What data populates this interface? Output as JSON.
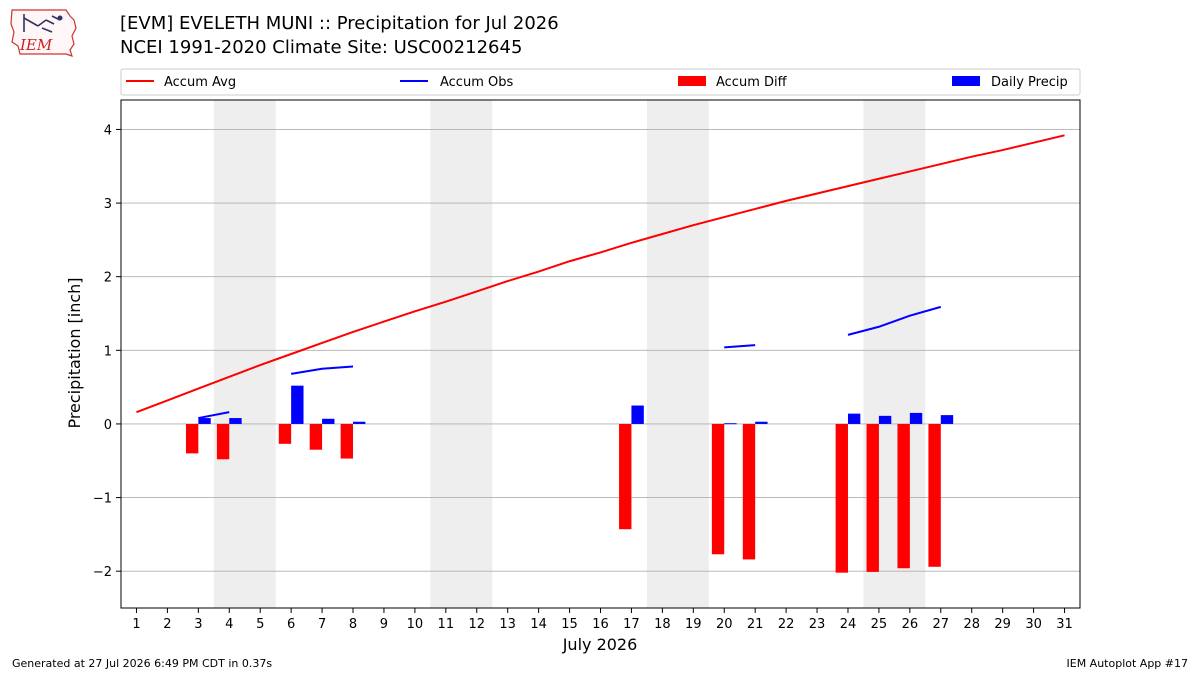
{
  "header": {
    "title": "[EVM] EVELETH MUNI :: Precipitation for Jul 2026",
    "subtitle": "NCEI 1991-2020 Climate Site: USC00212645",
    "logo_text": "IEM"
  },
  "footer": {
    "left": "Generated at 27 Jul 2026 6:49 PM CDT in 0.37s",
    "right": "IEM Autoplot App #17"
  },
  "colors": {
    "accum_avg": "#ff0000",
    "accum_obs": "#0000ff",
    "accum_diff": "#ff0000",
    "daily_precip": "#0000ff",
    "weekend_shade": "#eeeeee",
    "grid": "#b0b0b0"
  },
  "chart_data": {
    "type": "bar",
    "xlabel": "July 2026",
    "ylabel": "Precipitation [inch]",
    "xlim": [
      0.5,
      31.5
    ],
    "ylim": [
      -2.5,
      4.4
    ],
    "yticks": [
      -2,
      -1,
      0,
      1,
      2,
      3,
      4
    ],
    "ytick_labels": [
      "−2",
      "−1",
      "0",
      "1",
      "2",
      "3",
      "4"
    ],
    "x": [
      1,
      2,
      3,
      4,
      5,
      6,
      7,
      8,
      9,
      10,
      11,
      12,
      13,
      14,
      15,
      16,
      17,
      18,
      19,
      20,
      21,
      22,
      23,
      24,
      25,
      26,
      27,
      28,
      29,
      30,
      31
    ],
    "xtick_labels": [
      "1",
      "2",
      "3",
      "4",
      "5",
      "6",
      "7",
      "8",
      "9",
      "10",
      "11",
      "12",
      "13",
      "14",
      "15",
      "16",
      "17",
      "18",
      "19",
      "20",
      "21",
      "22",
      "23",
      "24",
      "25",
      "26",
      "27",
      "28",
      "29",
      "30",
      "31"
    ],
    "weekend_days": [
      4,
      5,
      11,
      12,
      18,
      19,
      25,
      26
    ],
    "grid": "y",
    "legend_position": "top",
    "legend": [
      {
        "label": "Accum Avg",
        "kind": "line",
        "color": "#ff0000"
      },
      {
        "label": "Accum Obs",
        "kind": "line",
        "color": "#0000ff"
      },
      {
        "label": "Accum Diff",
        "kind": "bar",
        "color": "#ff0000"
      },
      {
        "label": "Daily Precip",
        "kind": "bar",
        "color": "#0000ff"
      }
    ],
    "series": [
      {
        "name": "Accum Avg",
        "type": "line",
        "x": [
          1,
          2,
          3,
          4,
          5,
          6,
          7,
          8,
          9,
          10,
          11,
          12,
          13,
          14,
          15,
          16,
          17,
          18,
          19,
          20,
          21,
          22,
          23,
          24,
          25,
          26,
          27,
          28,
          29,
          30,
          31
        ],
        "values": [
          0.16,
          0.32,
          0.48,
          0.64,
          0.8,
          0.95,
          1.1,
          1.25,
          1.39,
          1.53,
          1.66,
          1.8,
          1.94,
          2.07,
          2.21,
          2.33,
          2.46,
          2.58,
          2.7,
          2.81,
          2.92,
          3.03,
          3.13,
          3.23,
          3.33,
          3.43,
          3.53,
          3.63,
          3.72,
          3.82,
          3.92
        ]
      },
      {
        "name": "Accum Obs",
        "type": "line",
        "segments": [
          {
            "x": [
              3,
              4
            ],
            "values": [
              0.08,
              0.16
            ]
          },
          {
            "x": [
              6,
              7,
              8
            ],
            "values": [
              0.68,
              0.75,
              0.78
            ]
          },
          {
            "x": [
              20,
              21
            ],
            "values": [
              1.04,
              1.07
            ]
          },
          {
            "x": [
              24,
              25,
              26,
              27
            ],
            "values": [
              1.21,
              1.32,
              1.47,
              1.59
            ]
          }
        ]
      },
      {
        "name": "Accum Diff",
        "type": "bar",
        "x": [
          3,
          4,
          6,
          7,
          8,
          17,
          20,
          21,
          24,
          25,
          26,
          27
        ],
        "values": [
          -0.4,
          -0.48,
          -0.27,
          -0.35,
          -0.47,
          -1.43,
          -1.77,
          -1.84,
          -2.02,
          -2.01,
          -1.96,
          -1.94
        ]
      },
      {
        "name": "Daily Precip",
        "type": "bar",
        "x": [
          3,
          4,
          6,
          7,
          8,
          17,
          20,
          21,
          24,
          25,
          26,
          27
        ],
        "values": [
          0.08,
          0.08,
          0.52,
          0.07,
          0.03,
          0.25,
          0.01,
          0.03,
          0.14,
          0.11,
          0.15,
          0.12
        ]
      }
    ]
  }
}
